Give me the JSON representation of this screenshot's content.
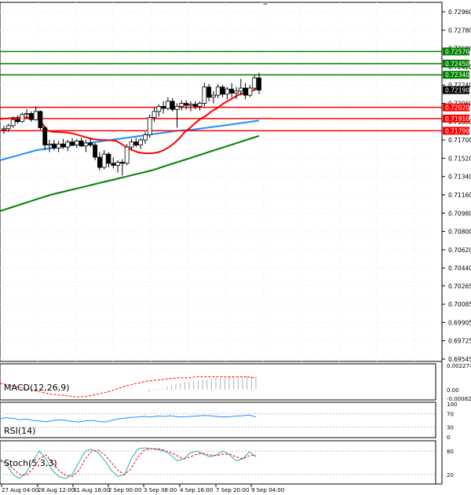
{
  "chart_data": {
    "type": "candlestick",
    "price_scale_labels": [
      "0.72960",
      "0.72780",
      "0.72600",
      "0.72420",
      "0.72240",
      "0.72060",
      "0.71880",
      "0.71700",
      "0.71520",
      "0.71340",
      "0.71160",
      "0.70980",
      "0.70800",
      "0.70620",
      "0.70440",
      "0.70265",
      "0.70085",
      "0.69905",
      "0.69725",
      "0.69545"
    ],
    "price_scale_values": [
      0.7296,
      0.7278,
      0.726,
      0.7242,
      0.7224,
      0.7206,
      0.7188,
      0.717,
      0.7152,
      0.7134,
      0.7116,
      0.7098,
      0.708,
      0.7062,
      0.7044,
      0.70265,
      0.70085,
      0.69905,
      0.69725,
      0.69545
    ],
    "levels": [
      {
        "label": "0.72570",
        "value": 0.7257,
        "color": "#008000"
      },
      {
        "label": "0.72450",
        "value": 0.7245,
        "color": "#008000"
      },
      {
        "label": "0.72340",
        "value": 0.7234,
        "color": "#008000"
      },
      {
        "label": "0.72020",
        "value": 0.7202,
        "color": "#ff0000"
      },
      {
        "label": "0.71910",
        "value": 0.7191,
        "color": "#ff0000"
      },
      {
        "label": "0.71790",
        "value": 0.7179,
        "color": "#ff0000"
      }
    ],
    "current_price": {
      "label": "0.72190",
      "value": 0.7219
    },
    "candles": [
      [
        0.718,
        0.7184,
        0.7176,
        0.7181
      ],
      [
        0.7181,
        0.7186,
        0.7178,
        0.7184
      ],
      [
        0.7184,
        0.7193,
        0.7182,
        0.719
      ],
      [
        0.719,
        0.7194,
        0.7186,
        0.7188
      ],
      [
        0.7188,
        0.7197,
        0.7187,
        0.7195
      ],
      [
        0.7195,
        0.72,
        0.7192,
        0.7196
      ],
      [
        0.7196,
        0.7198,
        0.7188,
        0.719
      ],
      [
        0.719,
        0.7203,
        0.7189,
        0.7198
      ],
      [
        0.7198,
        0.7199,
        0.718,
        0.7182
      ],
      [
        0.7182,
        0.7184,
        0.716,
        0.7165
      ],
      [
        0.7165,
        0.717,
        0.7158,
        0.7166
      ],
      [
        0.7166,
        0.717,
        0.716,
        0.7162
      ],
      [
        0.7162,
        0.7169,
        0.7158,
        0.7166
      ],
      [
        0.7166,
        0.7171,
        0.7161,
        0.7163
      ],
      [
        0.7163,
        0.717,
        0.7159,
        0.7168
      ],
      [
        0.7168,
        0.7172,
        0.7164,
        0.7165
      ],
      [
        0.7165,
        0.7171,
        0.7162,
        0.7169
      ],
      [
        0.7169,
        0.7172,
        0.7163,
        0.7164
      ],
      [
        0.7164,
        0.717,
        0.7158,
        0.7167
      ],
      [
        0.7167,
        0.7172,
        0.7163,
        0.7165
      ],
      [
        0.7165,
        0.7167,
        0.715,
        0.7153
      ],
      [
        0.7153,
        0.7158,
        0.714,
        0.7143
      ],
      [
        0.7143,
        0.716,
        0.7141,
        0.7156
      ],
      [
        0.7156,
        0.7158,
        0.7143,
        0.7147
      ],
      [
        0.7147,
        0.7153,
        0.7142,
        0.7145
      ],
      [
        0.7145,
        0.715,
        0.7138,
        0.7148
      ],
      [
        0.7148,
        0.7151,
        0.7135,
        0.7147
      ],
      [
        0.7147,
        0.7166,
        0.7145,
        0.7163
      ],
      [
        0.7163,
        0.7171,
        0.716,
        0.7168
      ],
      [
        0.7168,
        0.7172,
        0.7163,
        0.7165
      ],
      [
        0.7165,
        0.7172,
        0.7161,
        0.717
      ],
      [
        0.717,
        0.7178,
        0.7166,
        0.7175
      ],
      [
        0.7175,
        0.7195,
        0.7172,
        0.7192
      ],
      [
        0.7192,
        0.7202,
        0.7188,
        0.7198
      ],
      [
        0.7198,
        0.7205,
        0.7193,
        0.7203
      ],
      [
        0.7203,
        0.7208,
        0.7196,
        0.7201
      ],
      [
        0.7201,
        0.7212,
        0.7199,
        0.7208
      ],
      [
        0.7208,
        0.7211,
        0.7198,
        0.72
      ],
      [
        0.72,
        0.7206,
        0.7182,
        0.7203
      ],
      [
        0.7203,
        0.7209,
        0.7199,
        0.7206
      ],
      [
        0.7206,
        0.7209,
        0.72,
        0.7204
      ],
      [
        0.7204,
        0.7208,
        0.7198,
        0.7205
      ],
      [
        0.7205,
        0.7208,
        0.72,
        0.7203
      ],
      [
        0.7203,
        0.7208,
        0.7199,
        0.7206
      ],
      [
        0.7206,
        0.7226,
        0.7203,
        0.7222
      ],
      [
        0.7222,
        0.7225,
        0.7208,
        0.7212
      ],
      [
        0.7212,
        0.7218,
        0.7206,
        0.7214
      ],
      [
        0.7214,
        0.7225,
        0.7211,
        0.7222
      ],
      [
        0.7222,
        0.7224,
        0.7212,
        0.7215
      ],
      [
        0.7215,
        0.7222,
        0.721,
        0.722
      ],
      [
        0.722,
        0.7226,
        0.7212,
        0.7216
      ],
      [
        0.7216,
        0.7222,
        0.721,
        0.7218
      ],
      [
        0.7218,
        0.723,
        0.7214,
        0.7221
      ],
      [
        0.7221,
        0.7226,
        0.721,
        0.7214
      ],
      [
        0.7214,
        0.7224,
        0.7212,
        0.7221
      ],
      [
        0.7221,
        0.7234,
        0.7219,
        0.7231
      ],
      [
        0.7231,
        0.7236,
        0.7215,
        0.7219
      ]
    ],
    "ma_red": [
      0.71905,
      0.7191,
      0.71914,
      0.71918,
      0.7192,
      0.71921,
      0.7192,
      0.7191,
      0.7186,
      0.7179,
      0.7178,
      0.71778,
      0.71775,
      0.7177,
      0.7176,
      0.71745,
      0.7173,
      0.71715,
      0.71705,
      0.717,
      0.71698,
      0.71696,
      0.7169,
      0.7166,
      0.71625,
      0.716,
      0.7158,
      0.7157,
      0.71568,
      0.7157,
      0.7158,
      0.716,
      0.7163,
      0.7167,
      0.7172,
      0.7178,
      0.7182,
      0.7187,
      0.7191,
      0.7194,
      0.7198,
      0.7201,
      0.7205,
      0.7208,
      0.7211,
      0.7214,
      0.7216,
      0.7217,
      0.7219,
      0.7221
    ],
    "ma_blue": [
      0.715,
      0.7152,
      0.7154,
      0.7156,
      0.7158,
      0.716,
      0.7161,
      0.7162,
      0.7163,
      0.7164,
      0.7165,
      0.7166,
      0.7167,
      0.7168,
      0.7169,
      0.717,
      0.7171,
      0.7172,
      0.7173,
      0.7174,
      0.7175,
      0.7176,
      0.7177,
      0.7178,
      0.7179,
      0.71795,
      0.718,
      0.7181,
      0.7182,
      0.7183,
      0.7184,
      0.7185,
      0.7186,
      0.7187,
      0.7188,
      0.7189
    ],
    "ma_green": [
      0.71,
      0.7102,
      0.7104,
      0.7106,
      0.7108,
      0.711,
      0.7112,
      0.7114,
      0.7116,
      0.71175,
      0.7119,
      0.71205,
      0.7122,
      0.71235,
      0.7125,
      0.71265,
      0.7128,
      0.71295,
      0.7131,
      0.71325,
      0.7134,
      0.71355,
      0.7137,
      0.71385,
      0.714,
      0.7142,
      0.7144,
      0.7146,
      0.7148,
      0.715,
      0.7152,
      0.7154,
      0.7156,
      0.7158,
      0.716,
      0.7162,
      0.7164,
      0.7166,
      0.7168,
      0.717,
      0.7172,
      0.7174
    ],
    "x_tick_labels": [
      "27 Aug 04:00",
      "28 Aug 12:00",
      "31 Aug 16:00",
      "2 Sep 00:00",
      "3 Sep 08:00",
      "4 Sep 16:00",
      "7 Sep 20:00",
      "9 Sep 04:00"
    ],
    "macd": {
      "label": "MACD(12,26,9)",
      "scale_labels": [
        "0.002274",
        "0.00",
        "-0.00082"
      ],
      "hist": [
        -0.0002,
        -0.0001,
        -5e-05,
        0.0001,
        0.0003,
        0.0004,
        0.0005,
        0.0006,
        0.0007,
        0.0007,
        0.0008,
        0.0008,
        0.0009,
        0.0009,
        0.001,
        0.0011,
        0.0011,
        0.0011,
        0.0012,
        0.0012,
        0.0012,
        0.0012,
        0.0013,
        0.0013,
        0.0012
      ],
      "signal": [
        0.0006,
        0.0004,
        0.0002,
        0.0,
        -0.0002,
        -0.0004,
        -0.0005,
        -0.0006,
        -0.0007,
        -0.0006,
        -0.0004,
        -0.0002,
        0.0001,
        0.0004,
        0.0006,
        0.0008,
        0.0009,
        0.001,
        0.0011,
        0.0011,
        0.0012,
        0.0012,
        0.0012,
        0.0012,
        0.0012,
        0.0012,
        0.0011
      ]
    },
    "rsi": {
      "label": "RSI(14)",
      "scale_labels": [
        "100",
        "70",
        "30",
        "0"
      ],
      "levels": [
        70,
        30
      ],
      "values": [
        55,
        58,
        56,
        52,
        54,
        50,
        48,
        46,
        49,
        52,
        50,
        47,
        45,
        48,
        50,
        47,
        45,
        50,
        54,
        57,
        59,
        60,
        62,
        60,
        63,
        62,
        64,
        61,
        60,
        62,
        63,
        65,
        64,
        62,
        60,
        61,
        63,
        64,
        66,
        60
      ]
    },
    "stoch": {
      "label": "Stoch(5,3,3)",
      "scale_labels": [
        "80",
        "20"
      ],
      "levels": [
        80,
        20
      ],
      "k": [
        60,
        45,
        20,
        10,
        25,
        55,
        80,
        60,
        30,
        15,
        10,
        20,
        50,
        80,
        85,
        75,
        55,
        30,
        15,
        20,
        60,
        85,
        88,
        86,
        84,
        80,
        70,
        55,
        60,
        75,
        80,
        72,
        65,
        70,
        80,
        70,
        55,
        60,
        78,
        65
      ],
      "d": [
        55,
        50,
        35,
        20,
        18,
        35,
        60,
        70,
        50,
        30,
        18,
        15,
        30,
        60,
        80,
        82,
        70,
        50,
        30,
        20,
        35,
        65,
        82,
        86,
        86,
        82,
        76,
        68,
        60,
        65,
        72,
        74,
        70,
        68,
        72,
        72,
        65,
        60,
        68,
        70
      ]
    }
  }
}
